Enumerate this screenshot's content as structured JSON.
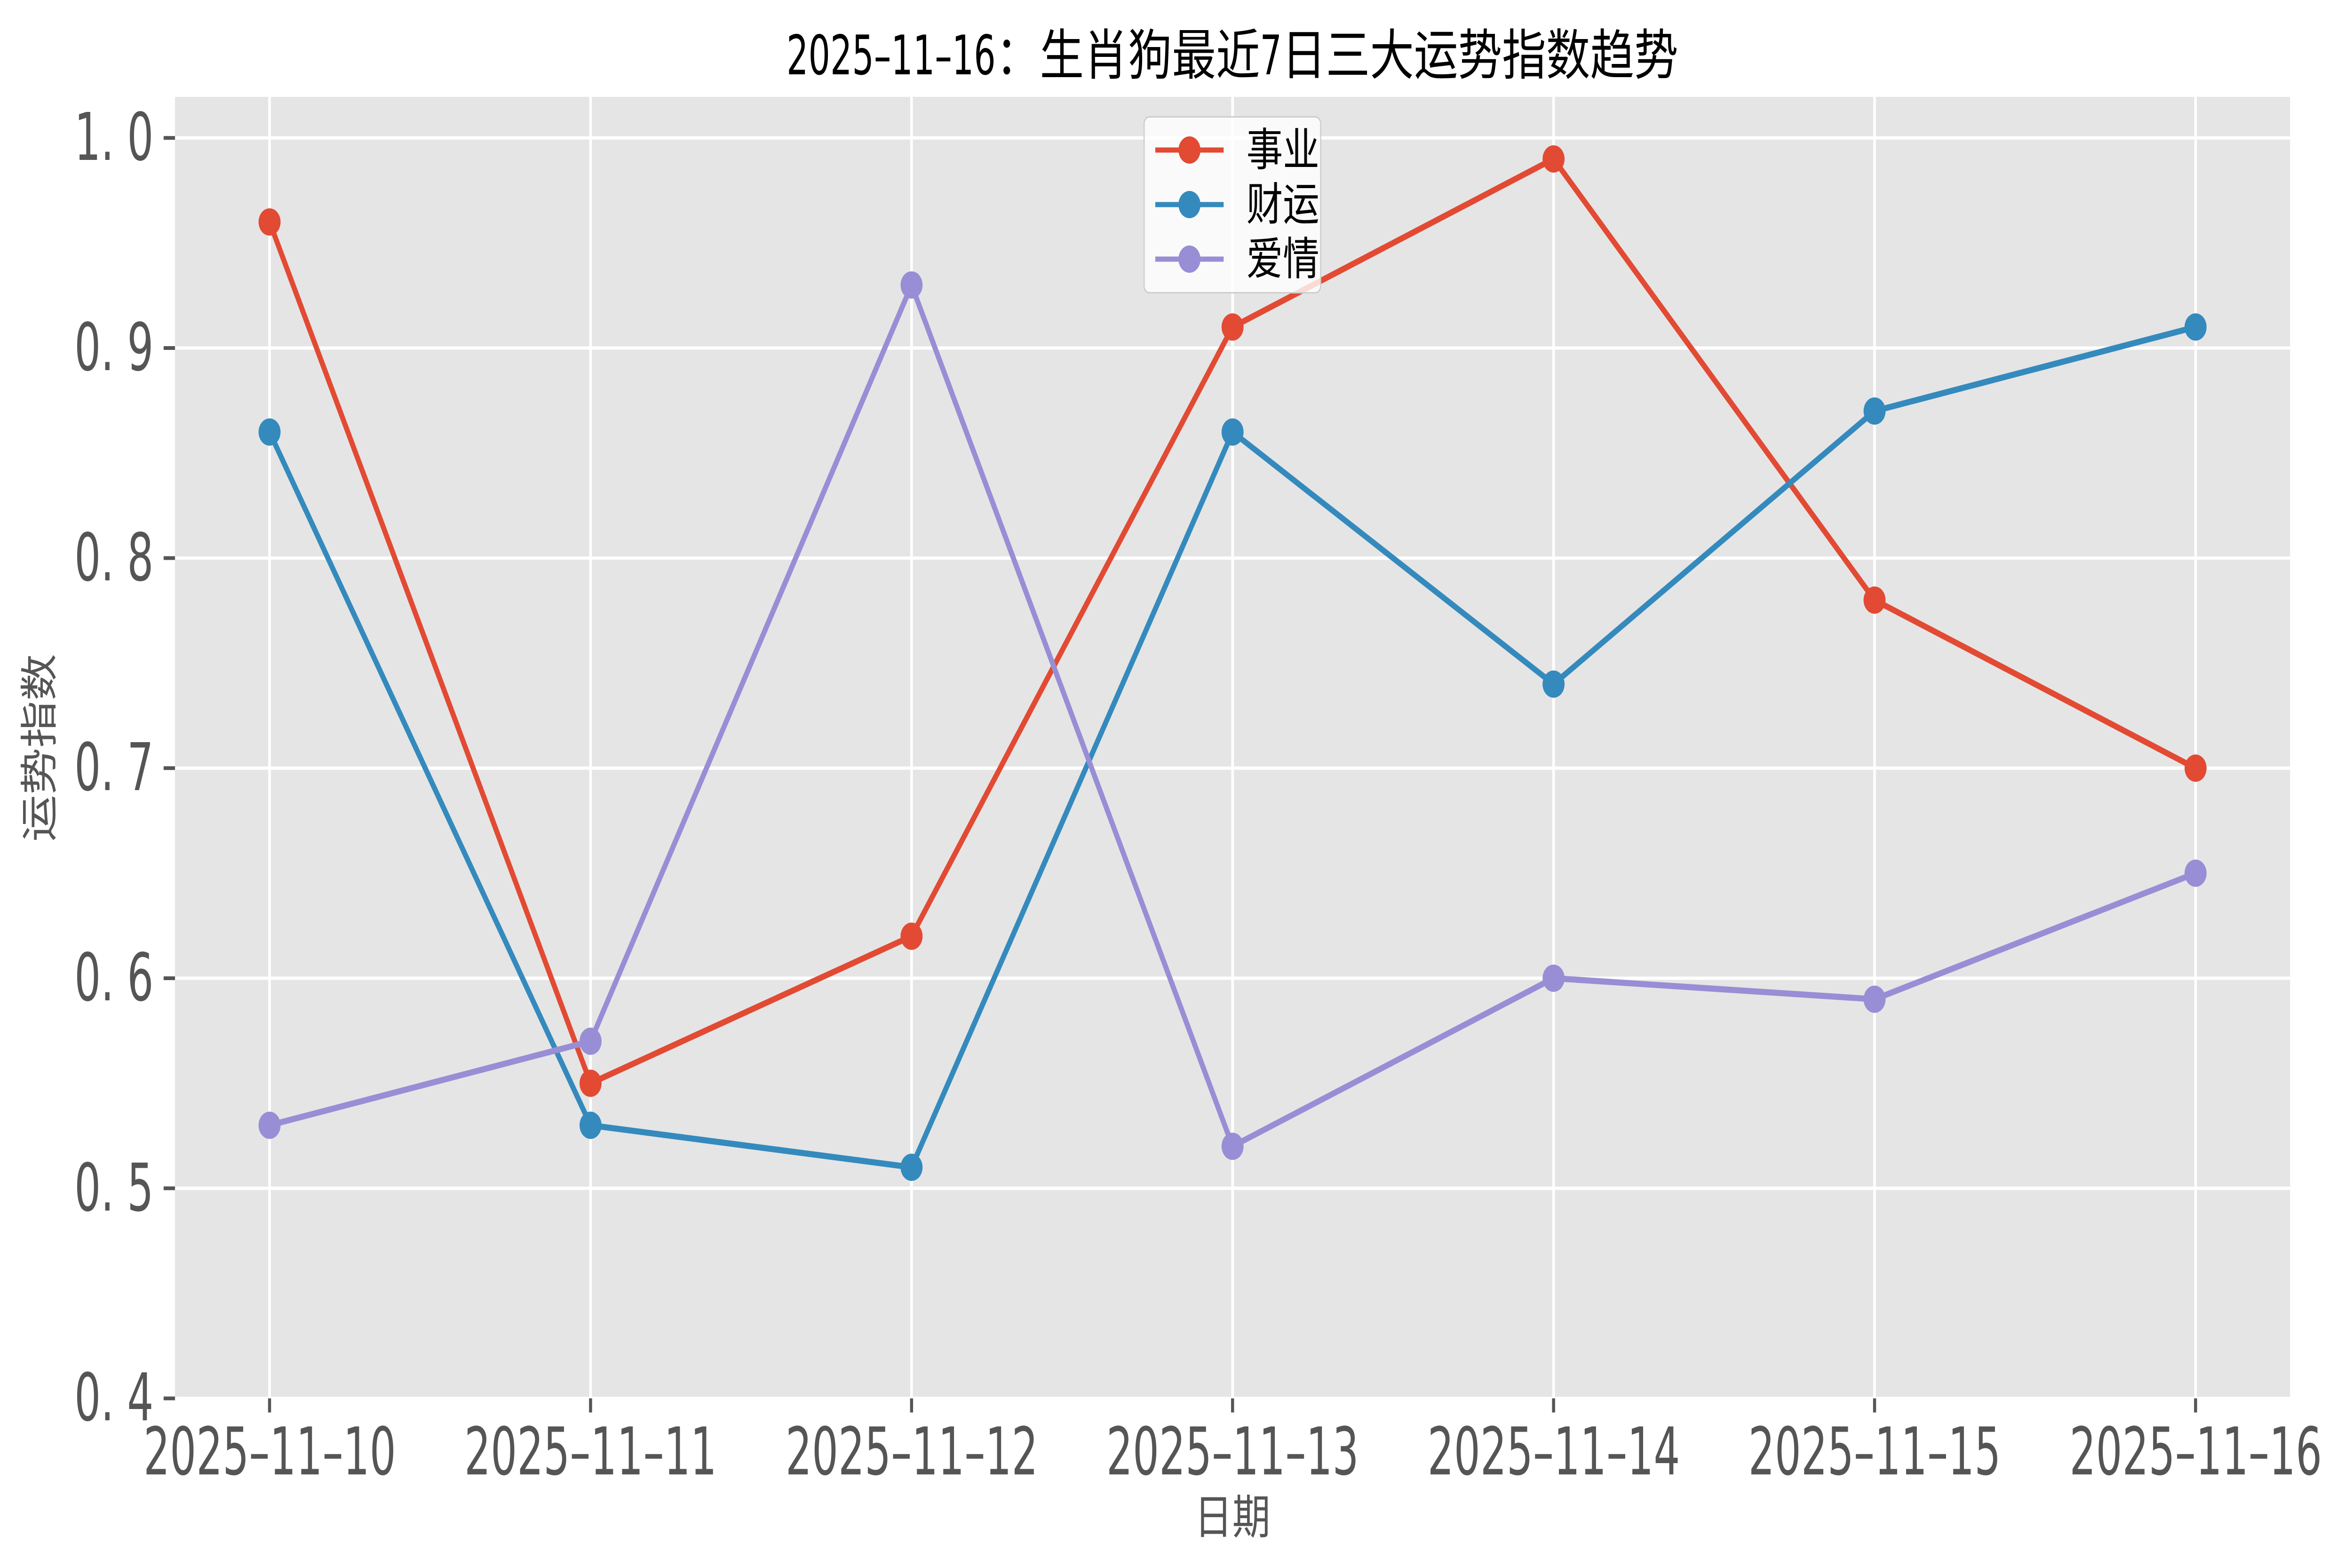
{
  "chart_data": {
    "type": "line",
    "title": "2025-11-16：生肖狗最近7日三大运势指数趋势",
    "xlabel": "日期",
    "ylabel": "运势指数",
    "categories": [
      "2025-11-10",
      "2025-11-11",
      "2025-11-12",
      "2025-11-13",
      "2025-11-14",
      "2025-11-15",
      "2025-11-16"
    ],
    "series": [
      {
        "name": "事业",
        "color": "#E24A33",
        "values": [
          0.96,
          0.55,
          0.62,
          0.91,
          0.99,
          0.78,
          0.7
        ]
      },
      {
        "name": "财运",
        "color": "#348ABD",
        "values": [
          0.86,
          0.53,
          0.51,
          0.86,
          0.74,
          0.87,
          0.91
        ]
      },
      {
        "name": "爱情",
        "color": "#988ED5",
        "values": [
          0.53,
          0.57,
          0.93,
          0.52,
          0.6,
          0.59,
          0.65
        ]
      }
    ],
    "y_ticks": [
      0.4,
      0.5,
      0.6,
      0.7,
      0.8,
      0.9,
      1.0
    ],
    "ylim": [
      0.4,
      1.02
    ],
    "grid": true,
    "legend_position": "upper center",
    "plot_background": "#E5E5E5",
    "grid_color": "#ffffff",
    "tick_text_color": "#555555",
    "title_color": "#000000"
  }
}
